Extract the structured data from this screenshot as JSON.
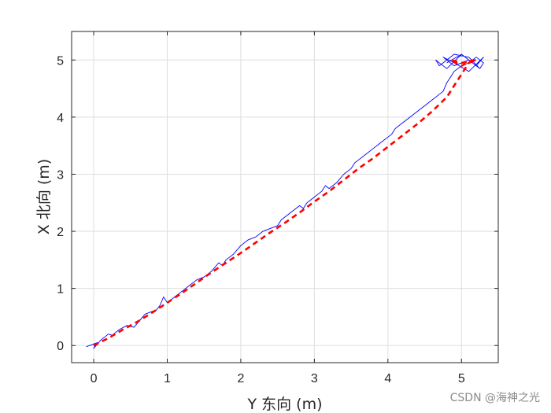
{
  "chart_data": {
    "type": "line",
    "title": "",
    "xlabel": "Y 东向 (m)",
    "ylabel": "X 北向 (m)",
    "xlim": [
      -0.3,
      5.5
    ],
    "ylim": [
      -0.3,
      5.5
    ],
    "xticks": [
      0,
      1,
      2,
      3,
      4,
      5
    ],
    "yticks": [
      0,
      1,
      2,
      3,
      4,
      5
    ],
    "grid": true,
    "series": [
      {
        "style": "solid-thin",
        "color": "#0000ff",
        "x": [
          -0.1,
          0.05,
          0.0,
          0.1,
          0.15,
          0.2,
          0.25,
          0.35,
          0.45,
          0.55,
          0.6,
          0.7,
          0.8,
          0.85,
          0.9,
          0.95,
          1.0,
          1.05,
          1.1,
          1.2,
          1.3,
          1.4,
          1.5,
          1.6,
          1.7,
          1.75,
          1.8,
          1.9,
          2.0,
          2.1,
          2.2,
          2.3,
          2.4,
          2.5,
          2.55,
          2.6,
          2.7,
          2.8,
          2.85,
          2.9,
          3.0,
          3.1,
          3.15,
          3.2,
          3.3,
          3.4,
          3.5,
          3.55,
          3.6,
          3.7,
          3.8,
          3.9,
          4.0,
          4.05,
          4.1,
          4.2,
          4.3,
          4.4,
          4.5,
          4.6,
          4.7,
          4.75,
          4.8,
          4.85,
          4.9,
          5.0,
          5.1,
          5.2,
          5.3,
          5.25,
          5.1,
          4.9,
          4.7,
          4.65,
          4.8,
          5.0,
          5.2,
          5.3,
          5.1,
          4.9,
          4.75,
          4.9,
          5.1,
          5.25,
          5.0,
          4.8
        ],
        "y": [
          -0.02,
          0.05,
          -0.05,
          0.1,
          0.15,
          0.2,
          0.18,
          0.28,
          0.35,
          0.32,
          0.4,
          0.55,
          0.6,
          0.62,
          0.7,
          0.85,
          0.75,
          0.8,
          0.85,
          0.95,
          1.05,
          1.15,
          1.2,
          1.3,
          1.45,
          1.4,
          1.5,
          1.6,
          1.75,
          1.85,
          1.9,
          2.0,
          2.05,
          2.1,
          2.2,
          2.25,
          2.35,
          2.45,
          2.4,
          2.5,
          2.6,
          2.7,
          2.8,
          2.75,
          2.85,
          3.0,
          3.1,
          3.2,
          3.25,
          3.35,
          3.45,
          3.55,
          3.65,
          3.7,
          3.8,
          3.9,
          4.0,
          4.1,
          4.2,
          4.3,
          4.4,
          4.45,
          4.6,
          4.7,
          4.8,
          4.9,
          4.95,
          5.05,
          4.95,
          4.85,
          5.05,
          5.1,
          4.9,
          5.0,
          4.85,
          5.1,
          4.9,
          5.05,
          4.8,
          4.95,
          5.05,
          4.9,
          5.0,
          4.85,
          5.1,
          4.95
        ]
      },
      {
        "style": "dashed-thick",
        "color": "#ff0000",
        "x": [
          0.0,
          0.2,
          0.4,
          0.6,
          0.8,
          1.0,
          1.2,
          1.4,
          1.6,
          1.8,
          2.0,
          2.2,
          2.4,
          2.6,
          2.8,
          3.0,
          3.2,
          3.4,
          3.6,
          3.8,
          4.0,
          4.2,
          4.4,
          4.6,
          4.8,
          4.9,
          5.0,
          5.1,
          5.2,
          5.0,
          4.85,
          5.0,
          5.15
        ],
        "y": [
          0.0,
          0.13,
          0.28,
          0.42,
          0.58,
          0.75,
          0.92,
          1.1,
          1.28,
          1.45,
          1.62,
          1.8,
          1.98,
          2.15,
          2.33,
          2.52,
          2.7,
          2.9,
          3.1,
          3.28,
          3.48,
          3.68,
          3.88,
          4.1,
          4.35,
          4.55,
          4.75,
          4.95,
          5.0,
          4.95,
          5.0,
          4.9,
          5.0
        ]
      }
    ]
  },
  "watermark": "CSDN @海神之光"
}
